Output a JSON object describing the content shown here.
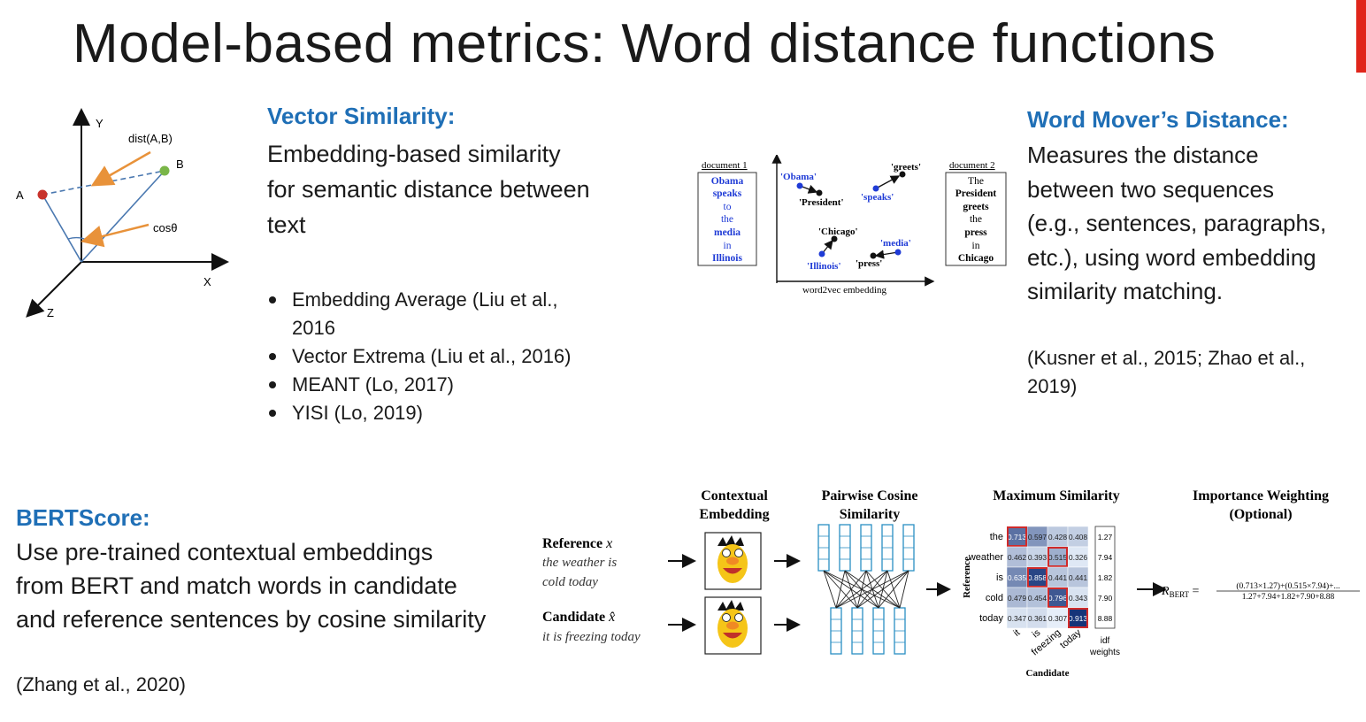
{
  "title": "Model-based metrics: Word distance functions",
  "vector_similarity": {
    "heading": "Vector Similarity:",
    "desc_lines": [
      "Embedding-based similarity",
      "for semantic distance between",
      "text"
    ],
    "bullets": [
      [
        "Embedding Average (Liu et al.,",
        "2016"
      ],
      [
        "Vector Extrema (Liu et al., 2016)"
      ],
      [
        "MEANT (Lo, 2017)"
      ],
      [
        "YISI (Lo, 2019)"
      ]
    ]
  },
  "axes_figure": {
    "y": "Y",
    "x": "X",
    "z": "Z",
    "a": "A",
    "b": "B",
    "dist": "dist(A,B)",
    "cos": "cosθ"
  },
  "wmd_figure": {
    "doc1_label": "document 1",
    "doc1_words": [
      "Obama",
      "speaks",
      "to",
      "the",
      "media",
      "in",
      "Illinois"
    ],
    "doc2_label": "document 2",
    "doc2_words": [
      "The",
      "President",
      "greets",
      "the",
      "press",
      "in",
      "Chicago"
    ],
    "points": [
      "'Obama'",
      "'President'",
      "'speaks'",
      "'greets'",
      "'Chicago'",
      "'Illinois'",
      "'media'",
      "'press'"
    ],
    "axis_label": "word2vec embedding"
  },
  "word_movers": {
    "heading": "Word Mover’s Distance:",
    "desc_lines": [
      "Measures the distance",
      "between two sequences",
      "(e.g., sentences, paragraphs,",
      "etc.), using word embedding",
      "similarity matching."
    ],
    "cite_lines": [
      "(Kusner et al., 2015; Zhao et al.,",
      "2019)"
    ]
  },
  "bertscore": {
    "heading": "BERTScore:",
    "desc_lines": [
      "Use pre-trained contextual embeddings",
      "from BERT and match words in candidate",
      "and reference sentences by cosine similarity"
    ],
    "cite": "(Zhang et al., 2020)"
  },
  "bert_figure": {
    "col_contextual": [
      "Contextual",
      "Embedding"
    ],
    "col_pairwise": [
      "Pairwise Cosine",
      "Similarity"
    ],
    "col_max": "Maximum Similarity",
    "col_importance": [
      "Importance Weighting",
      "(Optional)"
    ],
    "reference_label": "Reference",
    "reference_symbol": "x",
    "reference_text": [
      "the weather is",
      "cold today"
    ],
    "candidate_label": "Candidate",
    "candidate_symbol": "x̂",
    "candidate_text": "it is freezing today",
    "matrix_rows": [
      "the",
      "weather",
      "is",
      "cold",
      "today"
    ],
    "matrix_cols": [
      "it",
      "is",
      "freezing",
      "today"
    ],
    "matrix": [
      [
        "0.713",
        "0.597",
        "0.428",
        "0.408"
      ],
      [
        "0.462",
        "0.393",
        "0.515",
        "0.326"
      ],
      [
        "0.635",
        "0.858",
        "0.441",
        "0.441"
      ],
      [
        "0.479",
        "0.454",
        "0.796",
        "0.343"
      ],
      [
        "0.347",
        "0.361",
        "0.307",
        "0.913"
      ]
    ],
    "idf": [
      "1.27",
      "7.94",
      "1.82",
      "7.90",
      "8.88"
    ],
    "idf_label": [
      "idf",
      "weights"
    ],
    "matrix_ylabel": "Reference",
    "matrix_xlabel": "Candidate",
    "formula_lhs": "R",
    "formula_sub": "BERT",
    "formula_num": "(0.713×1.27)+(0.515×7.94)+...",
    "formula_den": "1.27+7.94+1.82+7.90+8.88"
  }
}
